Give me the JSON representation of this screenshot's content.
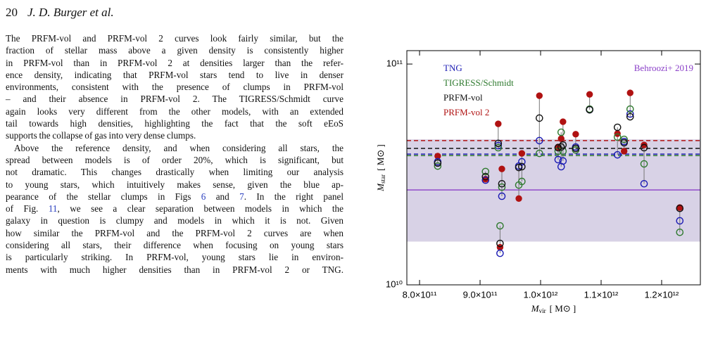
{
  "header": {
    "page": "20",
    "authors": "J. D. Burger et al."
  },
  "paragraphs": [
    [
      "The PRFM-vol and PRFM-vol 2 curves look fairly similar, but the",
      "fraction of stellar mass above a given density is consistently higher",
      "in PRFM-vol than in PRFM-vol 2 at densities larger than the refer-",
      "ence density, indicating that PRFM-vol stars tend to live in denser",
      "environments, consistent with the presence of clumps in PRFM-vol",
      "– and their absence in PRFM-vol 2. The TIGRESS/Schmidt curve",
      "again looks very different from the other models, with an extended",
      "tail towards high densities, highlighting the fact that the soft eEoS",
      "supports the collapse of gas into very dense clumps."
    ],
    [
      "Above the reference density, and when considering all stars, the",
      "spread between models is of order 20%, which is significant, but",
      "not dramatic. This changes drastically when limiting our analysis",
      "to young stars, which intuitively makes sense, given the blue ap-",
      [
        "pearance of the stellar clumps in Figs ",
        "6",
        " and ",
        "7",
        ". In the right panel"
      ],
      [
        "of Fig. ",
        "11",
        ", we see a clear separation between models in which the"
      ],
      "galaxy in question is clumpy and models in which it is not. Given",
      "how similar the PRFM-vol and the PRFM-vol 2 curves are when",
      "considering all stars, their difference when focusing on young stars",
      "is particularly striking. In PRFM-vol, young stars lie in environ-",
      "ments with much higher densities than in PRFM-vol 2 or TNG."
    ]
  ],
  "chart_data": {
    "type": "scatter",
    "x_label": {
      "symbol": "M",
      "subscript": "vir",
      "unit": "[ M⊙ ]"
    },
    "y_label": {
      "symbol": "M",
      "subscript": "star",
      "unit": "[ M⊙ ]"
    },
    "log_y": true,
    "xlim": [
      779000000000.0,
      1264000000000.0
    ],
    "ylim": [
      10000000000.0,
      115000000000.0
    ],
    "xticks": [
      {
        "value": 800000000000.0,
        "label": "8.0×10¹¹"
      },
      {
        "value": 900000000000.0,
        "label": "9.0×10¹¹"
      },
      {
        "value": 1000000000000.0,
        "label": "1.0×10¹²"
      },
      {
        "value": 1100000000000.0,
        "label": "1.1×10¹²"
      },
      {
        "value": 1200000000000.0,
        "label": "1.2×10¹²"
      }
    ],
    "yticks": [
      {
        "value": 10000000000.0,
        "label": "10¹⁰"
      },
      {
        "value": 100000000000.0,
        "label": "10¹¹"
      }
    ],
    "band": {
      "name": "Behroozi+ 2019",
      "color": "#8a3fc8",
      "fill": "#d8d2e6",
      "value": 26900000000.0,
      "low": 15700000000.0,
      "high": 45600000000.0
    },
    "x": [
      830000000000.0,
      909000000000.0,
      930000000000.0,
      936000000000.0,
      933000000000.0,
      964000000000.0,
      969000000000.0,
      998000000000.0,
      1029000000000.0,
      1034000000000.0,
      1037000000000.0,
      1058000000000.0,
      1081000000000.0,
      1127000000000.0,
      1138000000000.0,
      1148000000000.0,
      1171000000000.0,
      1230000000000.0
    ],
    "series": [
      {
        "name": "PRFM-vol 2",
        "color": "#b01212",
        "filled": true,
        "reference": 45000000000.0,
        "values": [
          38300000000.0,
          30100000000.0,
          53600000000.0,
          33500000000.0,
          14800000000.0,
          24600000000.0,
          39400000000.0,
          71900000000.0,
          42100000000.0,
          45900000000.0,
          54800000000.0,
          48100000000.0,
          72900000000.0,
          48400000000.0,
          40300000000.0,
          74000000000.0,
          43000000000.0,
          22400000000.0
        ]
      },
      {
        "name": "TNG",
        "color": "#1c1cb4",
        "filled": false,
        "reference": 39100000000.0,
        "values": [
          36100000000.0,
          29800000000.0,
          42700000000.0,
          25200000000.0,
          13900000000.0,
          34500000000.0,
          36100000000.0,
          45000000000.0,
          36900000000.0,
          34300000000.0,
          36400000000.0,
          42100000000.0,
          62100000000.0,
          38800000000.0,
          44600000000.0,
          59400000000.0,
          28700000000.0,
          19500000000.0
        ]
      },
      {
        "name": "TIGRESS/Schmidt",
        "color": "#2f7a2f",
        "filled": false,
        "reference": 38500000000.0,
        "values": [
          34500000000.0,
          32600000000.0,
          41800000000.0,
          27700000000.0,
          18500000000.0,
          28300000000.0,
          29400000000.0,
          39400000000.0,
          40300000000.0,
          49100000000.0,
          40300000000.0,
          40800000000.0,
          62500000000.0,
          46700000000.0,
          45600000000.0,
          62500000000.0,
          35300000000.0,
          17300000000.0
        ]
      },
      {
        "name": "PRFM-vol",
        "color": "#111111",
        "filled": false,
        "reference": 41500000000.0,
        "values": [
          35600000000.0,
          30900000000.0,
          43700000000.0,
          28700000000.0,
          15400000000.0,
          34000000000.0,
          34300000000.0,
          56900000000.0,
          41800000000.0,
          42100000000.0,
          43000000000.0,
          41500000000.0,
          62100000000.0,
          51700000000.0,
          44000000000.0,
          57700000000.0,
          41800000000.0,
          22200000000.0
        ]
      }
    ],
    "legend_order": [
      1,
      2,
      3,
      0
    ]
  }
}
